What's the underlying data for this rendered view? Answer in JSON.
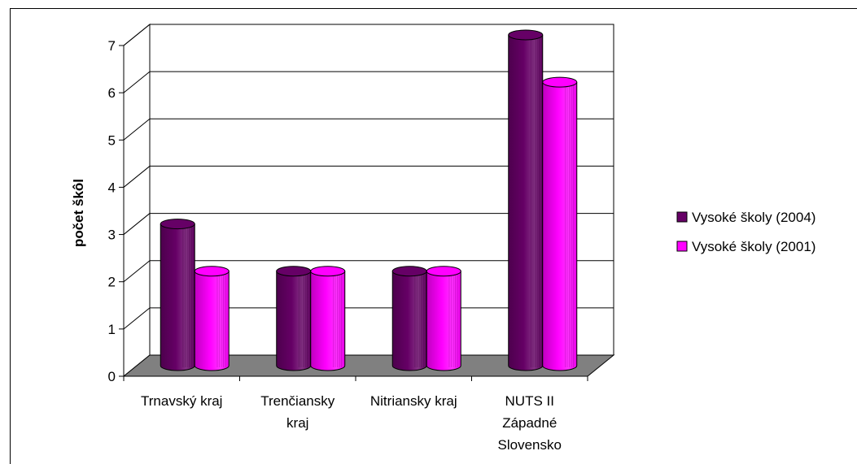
{
  "chart_data": {
    "type": "bar",
    "style": "3d-cylinder",
    "ylabel": "počet škôl",
    "ylim": [
      0,
      7
    ],
    "yticks": [
      "0",
      "1",
      "2",
      "3",
      "4",
      "5",
      "6",
      "7"
    ],
    "grid": true,
    "legend_position": "right",
    "categories": [
      [
        "Trnavský kraj"
      ],
      [
        "Trenčiansky",
        "kraj"
      ],
      [
        "Nitriansky kraj"
      ],
      [
        "NUTS II",
        "Západné",
        "Slovensko"
      ]
    ],
    "series": [
      {
        "name": "Vysoké školy (2004)",
        "values": [
          3,
          2,
          2,
          7
        ],
        "color": "#660066"
      },
      {
        "name": "Vysoké školy (2001)",
        "values": [
          2,
          2,
          2,
          6
        ],
        "color": "#ff00ff"
      }
    ]
  }
}
